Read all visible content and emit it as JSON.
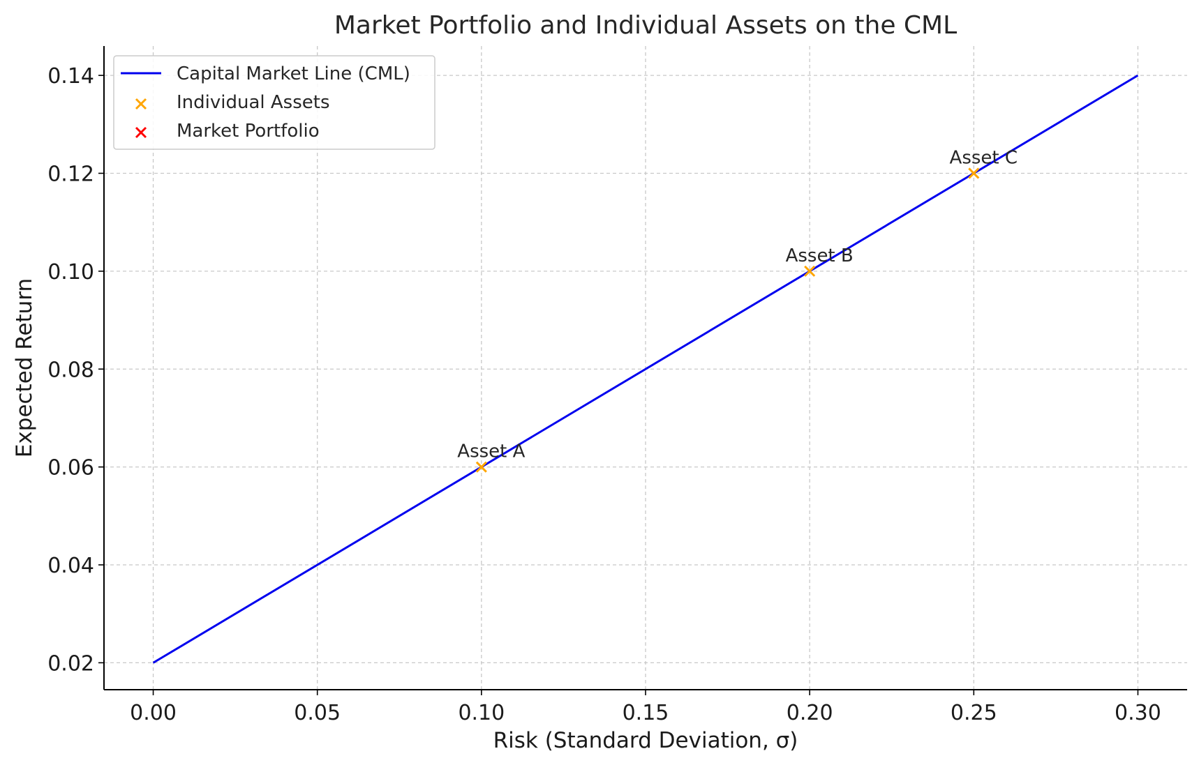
{
  "chart_data": {
    "type": "line",
    "title": "Market Portfolio and Individual Assets on the CML",
    "xlabel": "Risk (Standard Deviation, σ)",
    "ylabel": "Expected Return",
    "xlim": [
      -0.015,
      0.315
    ],
    "ylim": [
      0.0145,
      0.146
    ],
    "xticks": [
      0.0,
      0.05,
      0.1,
      0.15,
      0.2,
      0.25,
      0.3
    ],
    "xtick_labels": [
      "0.00",
      "0.05",
      "0.10",
      "0.15",
      "0.20",
      "0.25",
      "0.30"
    ],
    "yticks": [
      0.02,
      0.04,
      0.06,
      0.08,
      0.1,
      0.12,
      0.14
    ],
    "ytick_labels": [
      "0.02",
      "0.04",
      "0.06",
      "0.08",
      "0.10",
      "0.12",
      "0.14"
    ],
    "grid": true,
    "legend_position": "top-left",
    "series": [
      {
        "name": "Capital Market Line (CML)",
        "kind": "line",
        "color": "#0000ee",
        "x": [
          0.0,
          0.3
        ],
        "y": [
          0.02,
          0.14
        ]
      },
      {
        "name": "Individual Assets",
        "kind": "scatter",
        "marker": "x",
        "color": "#ffa500",
        "x": [
          0.1,
          0.2,
          0.25
        ],
        "y": [
          0.06,
          0.1,
          0.12
        ],
        "labels": [
          "Asset A",
          "Asset B",
          "Asset C"
        ]
      },
      {
        "name": "Market Portfolio",
        "kind": "scatter",
        "marker": "x",
        "color": "#ff0000",
        "x": [],
        "y": []
      }
    ]
  }
}
